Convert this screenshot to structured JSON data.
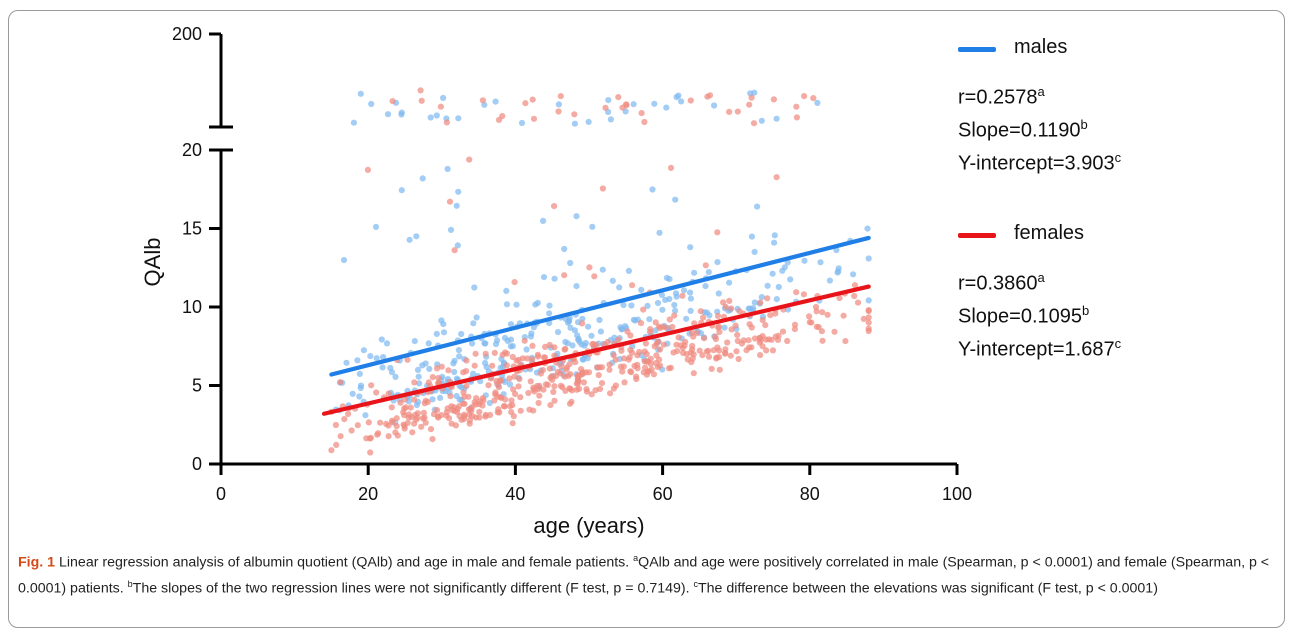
{
  "chart_data": {
    "type": "scatter",
    "xlabel": "age (years)",
    "ylabel": "QAlb",
    "xlim": [
      0,
      100
    ],
    "xticks": [
      "0",
      "20",
      "40",
      "60",
      "80",
      "100"
    ],
    "ylim": [
      0,
      20
    ],
    "yticks": [
      "0",
      "5",
      "10",
      "15",
      "20"
    ],
    "ybreak_upper_tick": "200",
    "grid": false,
    "legend_position": "right",
    "series": [
      {
        "name": "males",
        "color": "#1f7fe6",
        "point_color": "#7fbaf0",
        "regression": {
          "r": "r=0.2578",
          "r_sup": "a",
          "slope": "Slope=0.1190",
          "slope_sup": "b",
          "intercept": "Y-intercept=3.903",
          "intercept_sup": "c",
          "line": [
            [
              15,
              5.7
            ],
            [
              88,
              14.4
            ]
          ]
        }
      },
      {
        "name": "females",
        "color": "#e8141a",
        "point_color": "#f08a80",
        "regression": {
          "r": "r=0.3860",
          "r_sup": "a",
          "slope": "Slope=0.1095",
          "slope_sup": "b",
          "intercept": "Y-intercept=1.687",
          "intercept_sup": "c",
          "line": [
            [
              14,
              3.2
            ],
            [
              88,
              11.3
            ]
          ]
        }
      }
    ]
  },
  "caption": {
    "fig_label": "Fig. 1",
    "text_1": "  Linear regression analysis of albumin quotient (QAlb) and age in male and female patients. ",
    "sup_a": "a",
    "text_2": "QAlb and age were positively correlated in male (Spearman, p < 0.0001) and female (Spearman, p < 0.0001) patients. ",
    "sup_b": "b",
    "text_3": "The slopes of the two regression lines were not significantly different (F test, p = 0.7149). ",
    "sup_c": "c",
    "text_4": "The difference between the elevations was significant (F test, p < 0.0001)"
  }
}
